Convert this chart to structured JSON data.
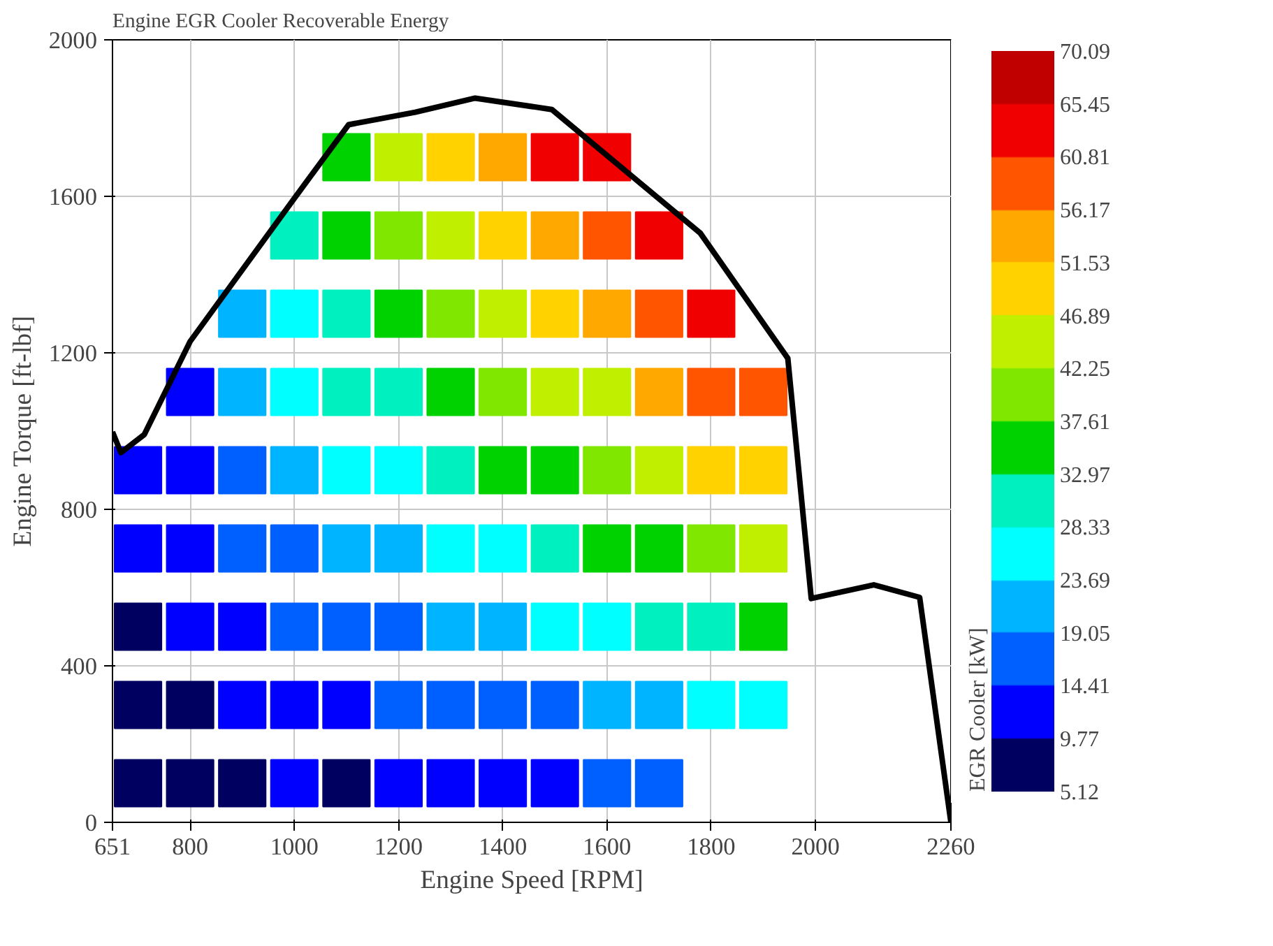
{
  "chart_data": {
    "type": "scatter",
    "title": "Engine EGR Cooler Recoverable Energy",
    "xlabel": "Engine Speed [RPM]",
    "ylabel": "Engine Torque [ft-lbf]",
    "clabel": "EGR Cooler [kW]",
    "xlim": [
      651,
      2260
    ],
    "xticks": [
      651,
      800,
      1000,
      1200,
      1400,
      1600,
      1800,
      2000,
      2260
    ],
    "ylim": [
      0,
      2000
    ],
    "yticks": [
      0,
      400,
      800,
      1200,
      1600,
      2000
    ],
    "grid": true,
    "clim": [
      5.12,
      70.09
    ],
    "cticks": [
      5.12,
      9.77,
      14.41,
      19.05,
      23.69,
      28.33,
      32.97,
      37.61,
      42.25,
      46.89,
      51.53,
      56.17,
      60.81,
      65.45,
      70.09
    ],
    "colors": [
      "#000060",
      "#0000ff",
      "#0060ff",
      "#00b4ff",
      "#00ffff",
      "#00f0c0",
      "#00d200",
      "#80e800",
      "#c0f000",
      "#ffd200",
      "#ffa800",
      "#ff5400",
      "#f00000",
      "#c00000"
    ],
    "series": [
      {
        "marker": "square",
        "colors": [
          "#000060",
          "#000060",
          "#000060",
          "#0000ff",
          "#0000ff",
          "#000060",
          "#000060",
          "#0000ff",
          "#0000ff",
          "#0000ff",
          "#0000ff",
          "#000060",
          "#0000ff",
          "#0000ff",
          "#0060ff",
          "#0060ff",
          "#00b4ff",
          "#00b4ff",
          "#0000ff",
          "#0000ff",
          "#0060ff",
          "#0060ff",
          "#00b4ff",
          "#00ffff",
          "#00ffff",
          "#00f0c0",
          "#000060",
          "#0000ff",
          "#0060ff",
          "#00b4ff",
          "#00ffff",
          "#00f0c0",
          "#00f0c0",
          "#00d200",
          "#00d200",
          "#0000ff",
          "#0060ff",
          "#0060ff",
          "#00b4ff",
          "#00ffff",
          "#00f0c0",
          "#00d200",
          "#80e800",
          "#c0f000",
          "#0000ff",
          "#0060ff",
          "#00b4ff",
          "#00ffff",
          "#00f0c0",
          "#00d200",
          "#80e800",
          "#c0f000",
          "#ffd200",
          "#0000ff",
          "#0060ff",
          "#00b4ff",
          "#00ffff",
          "#00d200",
          "#80e800",
          "#c0f000",
          "#ffd200",
          "#ffa800",
          "#0000ff",
          "#0060ff",
          "#00ffff",
          "#00f0c0",
          "#00d200",
          "#c0f000",
          "#ffd200",
          "#ffa800",
          "#f00000",
          "#0060ff",
          "#00b4ff",
          "#00ffff",
          "#00d200",
          "#80e800",
          "#c0f000",
          "#ffa800",
          "#ff5400",
          "#f00000",
          "#0060ff",
          "#00b4ff",
          "#00f0c0",
          "#00d200",
          "#c0f000",
          "#ffa800",
          "#ff5400",
          "#f00000",
          "#00ffff",
          "#00f0c0",
          "#80e800",
          "#ffd200",
          "#ff5400",
          "#f00000",
          "#00ffff",
          "#00d200",
          "#c0f000",
          "#ffd200",
          "#ff5400"
        ],
        "x": [
          700,
          700,
          700,
          700,
          700,
          800,
          800,
          800,
          800,
          800,
          800,
          900,
          900,
          900,
          900,
          900,
          900,
          900,
          1000,
          1000,
          1000,
          1000,
          1000,
          1000,
          1000,
          1000,
          1100,
          1100,
          1100,
          1100,
          1100,
          1100,
          1100,
          1100,
          1100,
          1200,
          1200,
          1200,
          1200,
          1200,
          1200,
          1200,
          1200,
          1200,
          1300,
          1300,
          1300,
          1300,
          1300,
          1300,
          1300,
          1300,
          1300,
          1400,
          1400,
          1400,
          1400,
          1400,
          1400,
          1400,
          1400,
          1400,
          1500,
          1500,
          1500,
          1500,
          1500,
          1500,
          1500,
          1500,
          1500,
          1600,
          1600,
          1600,
          1600,
          1600,
          1600,
          1600,
          1600,
          1600,
          1700,
          1700,
          1700,
          1700,
          1700,
          1700,
          1700,
          1700,
          1800,
          1800,
          1800,
          1800,
          1800,
          1800,
          1900,
          1900,
          1900,
          1900,
          1900
        ],
        "values": [
          100,
          300,
          500,
          700,
          900,
          100,
          300,
          500,
          700,
          900,
          1100,
          100,
          300,
          500,
          700,
          900,
          1100,
          1300,
          100,
          300,
          500,
          700,
          900,
          1100,
          1300,
          1500,
          100,
          300,
          500,
          700,
          900,
          1100,
          1300,
          1500,
          1700,
          100,
          300,
          500,
          700,
          900,
          1100,
          1300,
          1500,
          1700,
          100,
          300,
          500,
          700,
          900,
          1100,
          1300,
          1500,
          1700,
          100,
          300,
          500,
          700,
          900,
          1100,
          1300,
          1500,
          1700,
          100,
          300,
          500,
          700,
          900,
          1100,
          1300,
          1500,
          1700,
          100,
          300,
          500,
          700,
          900,
          1100,
          1300,
          1500,
          1700,
          100,
          300,
          500,
          700,
          900,
          1100,
          1300,
          1500,
          300,
          500,
          700,
          900,
          1100,
          1300,
          300,
          500,
          700,
          900,
          1100
        ],
        "cvalues": [
          7.4,
          7.4,
          7.4,
          12.1,
          12.1,
          7.4,
          7.4,
          12.1,
          12.1,
          12.1,
          12.1,
          7.4,
          12.1,
          12.1,
          16.7,
          16.7,
          21.4,
          21.4,
          12.1,
          12.1,
          16.7,
          16.7,
          21.4,
          26.0,
          26.0,
          30.7,
          7.4,
          12.1,
          16.7,
          21.4,
          26.0,
          30.7,
          30.7,
          35.3,
          35.3,
          12.1,
          16.7,
          16.7,
          21.4,
          26.0,
          30.7,
          35.3,
          39.9,
          44.6,
          12.1,
          16.7,
          21.4,
          26.0,
          30.7,
          35.3,
          39.9,
          44.6,
          49.2,
          12.1,
          16.7,
          21.4,
          26.0,
          35.3,
          39.9,
          44.6,
          49.2,
          53.9,
          12.1,
          16.7,
          26.0,
          30.7,
          35.3,
          44.6,
          49.2,
          53.9,
          63.1,
          16.7,
          21.4,
          26.0,
          35.3,
          39.9,
          44.6,
          53.9,
          58.5,
          63.1,
          16.7,
          21.4,
          30.7,
          35.3,
          44.6,
          53.9,
          58.5,
          63.1,
          26.0,
          30.7,
          39.9,
          49.2,
          58.5,
          63.1,
          26.0,
          35.3,
          44.6,
          49.2,
          58.5
        ]
      },
      {
        "type": "line",
        "color": "#000000",
        "x": [
          651,
          667,
          712,
          800,
          1000,
          1104,
          1232,
          1347,
          1494,
          1779,
          1947,
          1992,
          2112,
          2200,
          2260
        ],
        "values": [
          998,
          945,
          991,
          1229,
          1595,
          1783,
          1815,
          1851,
          1822,
          1506,
          1186,
          572,
          607,
          575,
          0
        ]
      }
    ]
  }
}
